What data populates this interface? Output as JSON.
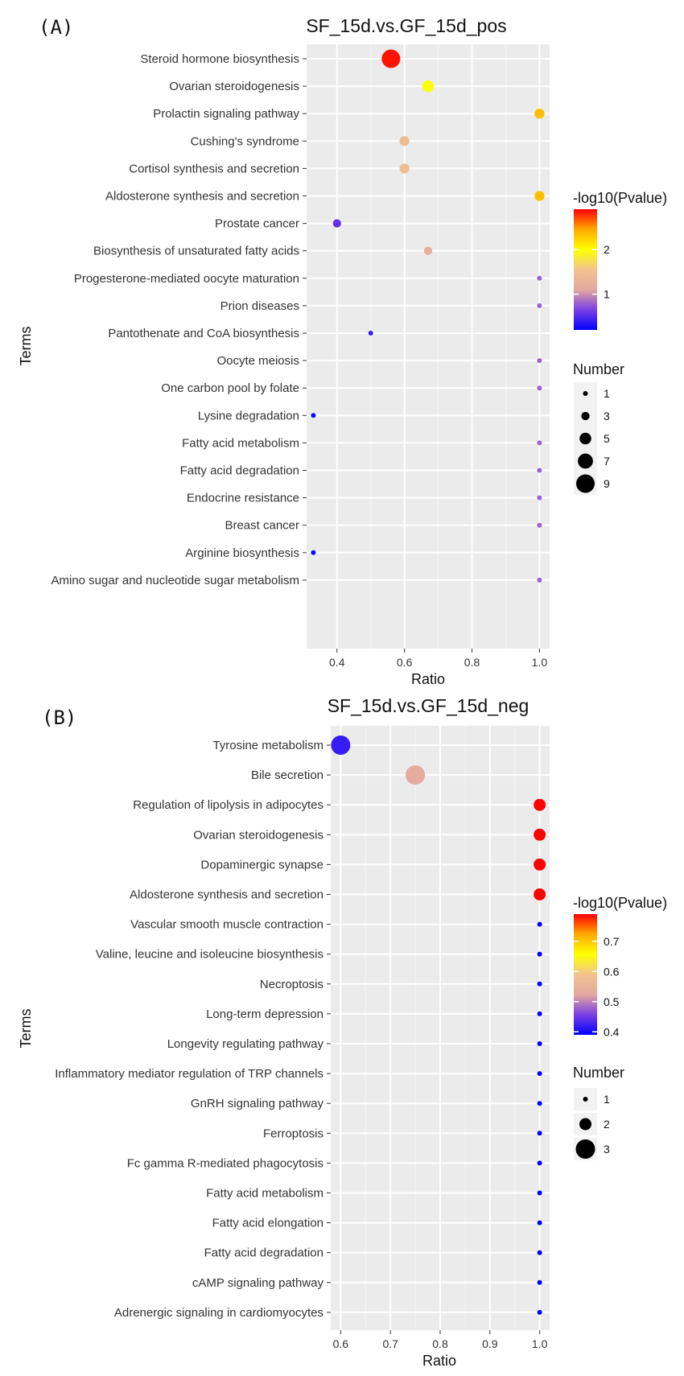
{
  "chart_data": [
    {
      "type": "scatter",
      "panel_label": "(A)",
      "title": "SF_15d.vs.GF_15d_pos",
      "xlabel": "Ratio",
      "ylabel": "Terms",
      "xlim": [
        0.31,
        1.03
      ],
      "xticks": [
        0.4,
        0.6,
        0.8,
        1.0
      ],
      "xtick_labels": [
        "0.4",
        "0.6",
        "0.8",
        "1.0"
      ],
      "color_legend": {
        "title": "-log10(Pvalue)",
        "min": 0.2,
        "max": 2.9,
        "ticks": [
          1,
          2
        ],
        "tick_labels": [
          "1",
          "2"
        ]
      },
      "size_legend": {
        "title": "Number",
        "values": [
          1,
          3,
          5,
          7,
          9
        ],
        "labels": [
          "1",
          "3",
          "5",
          "7",
          "9"
        ]
      },
      "points": [
        {
          "term": "Steroid hormone biosynthesis",
          "ratio": 0.56,
          "number": 9,
          "pvalue": 2.85
        },
        {
          "term": "Ovarian steroidogenesis",
          "ratio": 0.67,
          "number": 5,
          "pvalue": 2.0
        },
        {
          "term": "Prolactin signaling pathway",
          "ratio": 1.0,
          "number": 4,
          "pvalue": 2.35
        },
        {
          "term": "Cushing's syndrome",
          "ratio": 0.6,
          "number": 4,
          "pvalue": 1.45
        },
        {
          "term": "Cortisol synthesis and secretion",
          "ratio": 0.6,
          "number": 4,
          "pvalue": 1.45
        },
        {
          "term": "Aldosterone synthesis and secretion",
          "ratio": 1.0,
          "number": 4,
          "pvalue": 2.35
        },
        {
          "term": "Prostate cancer",
          "ratio": 0.4,
          "number": 3,
          "pvalue": 0.55
        },
        {
          "term": "Biosynthesis of unsaturated fatty acids",
          "ratio": 0.67,
          "number": 3,
          "pvalue": 1.2
        },
        {
          "term": "Progesterone-mediated oocyte maturation",
          "ratio": 1.0,
          "number": 1,
          "pvalue": 0.8
        },
        {
          "term": "Prion diseases",
          "ratio": 1.0,
          "number": 1,
          "pvalue": 0.8
        },
        {
          "term": "Pantothenate and CoA biosynthesis",
          "ratio": 0.5,
          "number": 1,
          "pvalue": 0.4
        },
        {
          "term": "Oocyte meiosis",
          "ratio": 1.0,
          "number": 1,
          "pvalue": 0.8
        },
        {
          "term": "One carbon pool by folate",
          "ratio": 1.0,
          "number": 1,
          "pvalue": 0.8
        },
        {
          "term": "Lysine degradation",
          "ratio": 0.33,
          "number": 1,
          "pvalue": 0.25
        },
        {
          "term": "Fatty acid metabolism",
          "ratio": 1.0,
          "number": 1,
          "pvalue": 0.8
        },
        {
          "term": "Fatty acid degradation",
          "ratio": 1.0,
          "number": 1,
          "pvalue": 0.8
        },
        {
          "term": "Endocrine resistance",
          "ratio": 1.0,
          "number": 1,
          "pvalue": 0.8
        },
        {
          "term": "Breast cancer",
          "ratio": 1.0,
          "number": 1,
          "pvalue": 0.8
        },
        {
          "term": "Arginine biosynthesis",
          "ratio": 0.33,
          "number": 1,
          "pvalue": 0.25
        },
        {
          "term": "Amino sugar and nucleotide sugar metabolism",
          "ratio": 1.0,
          "number": 1,
          "pvalue": 0.8
        }
      ]
    },
    {
      "type": "scatter",
      "panel_label": "(B)",
      "title": "SF_15d.vs.GF_15d_neg",
      "xlabel": "Ratio",
      "ylabel": "Terms",
      "xlim": [
        0.58,
        1.02
      ],
      "xticks": [
        0.6,
        0.7,
        0.8,
        0.9,
        1.0
      ],
      "xtick_labels": [
        "0.6",
        "0.7",
        "0.8",
        "0.9",
        "1.0"
      ],
      "color_legend": {
        "title": "-log10(Pvalue)",
        "min": 0.39,
        "max": 0.79,
        "ticks": [
          0.4,
          0.5,
          0.6,
          0.7
        ],
        "tick_labels": [
          "0.4",
          "0.5",
          "0.6",
          "0.7"
        ]
      },
      "size_legend": {
        "title": "Number",
        "values": [
          1,
          2,
          3
        ],
        "labels": [
          "1",
          "2",
          "3"
        ]
      },
      "points": [
        {
          "term": "Tyrosine metabolism",
          "ratio": 0.6,
          "number": 3,
          "pvalue": 0.42
        },
        {
          "term": "Bile secretion",
          "ratio": 0.75,
          "number": 3,
          "pvalue": 0.53
        },
        {
          "term": "Regulation of lipolysis in adipocytes",
          "ratio": 1.0,
          "number": 2,
          "pvalue": 0.79
        },
        {
          "term": "Ovarian steroidogenesis",
          "ratio": 1.0,
          "number": 2,
          "pvalue": 0.79
        },
        {
          "term": "Dopaminergic synapse",
          "ratio": 1.0,
          "number": 2,
          "pvalue": 0.79
        },
        {
          "term": "Aldosterone synthesis and secretion",
          "ratio": 1.0,
          "number": 2,
          "pvalue": 0.79
        },
        {
          "term": "Vascular smooth muscle contraction",
          "ratio": 1.0,
          "number": 1,
          "pvalue": 0.39
        },
        {
          "term": "Valine, leucine and isoleucine biosynthesis",
          "ratio": 1.0,
          "number": 1,
          "pvalue": 0.39
        },
        {
          "term": "Necroptosis",
          "ratio": 1.0,
          "number": 1,
          "pvalue": 0.39
        },
        {
          "term": "Long-term depression",
          "ratio": 1.0,
          "number": 1,
          "pvalue": 0.39
        },
        {
          "term": "Longevity regulating pathway",
          "ratio": 1.0,
          "number": 1,
          "pvalue": 0.39
        },
        {
          "term": "Inflammatory mediator regulation of TRP channels",
          "ratio": 1.0,
          "number": 1,
          "pvalue": 0.39
        },
        {
          "term": "GnRH signaling pathway",
          "ratio": 1.0,
          "number": 1,
          "pvalue": 0.39
        },
        {
          "term": "Ferroptosis",
          "ratio": 1.0,
          "number": 1,
          "pvalue": 0.39
        },
        {
          "term": "Fc gamma R-mediated phagocytosis",
          "ratio": 1.0,
          "number": 1,
          "pvalue": 0.39
        },
        {
          "term": "Fatty acid metabolism",
          "ratio": 1.0,
          "number": 1,
          "pvalue": 0.39
        },
        {
          "term": "Fatty acid elongation",
          "ratio": 1.0,
          "number": 1,
          "pvalue": 0.39
        },
        {
          "term": "Fatty acid degradation",
          "ratio": 1.0,
          "number": 1,
          "pvalue": 0.39
        },
        {
          "term": "cAMP signaling pathway",
          "ratio": 1.0,
          "number": 1,
          "pvalue": 0.39
        },
        {
          "term": "Adrenergic signaling in cardiomyocytes",
          "ratio": 1.0,
          "number": 1,
          "pvalue": 0.39
        }
      ]
    }
  ],
  "colors": {
    "panel_bg": "#ebebeb",
    "grid": "#ffffff",
    "gradient": [
      "#0000ff",
      "#7b3fe4",
      "#e2a8a0",
      "#f3c38f",
      "#ffff00",
      "#ffaa00",
      "#ff0000"
    ]
  }
}
